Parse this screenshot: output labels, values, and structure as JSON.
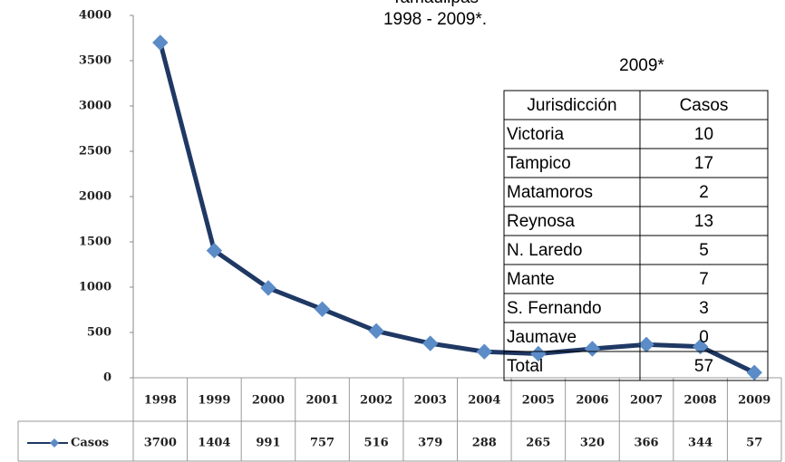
{
  "chart_data": {
    "type": "line",
    "title": [
      "Tamaulipas",
      "1998 - 2009*."
    ],
    "categories": [
      "1998",
      "1999",
      "2000",
      "2001",
      "2002",
      "2003",
      "2004",
      "2005",
      "2006",
      "2007",
      "2008",
      "2009"
    ],
    "series": [
      {
        "name": "Casos",
        "color": "#1f3864",
        "marker_color": "#5b8cc8",
        "values": [
          3700,
          1404,
          991,
          757,
          516,
          379,
          288,
          265,
          320,
          366,
          344,
          57
        ]
      }
    ],
    "ylim": [
      0,
      4000
    ],
    "yticks": [
      0,
      500,
      1000,
      1500,
      2000,
      2500,
      3000,
      3500,
      4000
    ]
  },
  "table": {
    "title": "2009*",
    "header": [
      "Jurisdicción",
      "Casos"
    ],
    "rows": [
      [
        "Victoria",
        10
      ],
      [
        "Tampico",
        17
      ],
      [
        "Matamoros",
        2
      ],
      [
        "Reynosa",
        13
      ],
      [
        "N. Laredo",
        5
      ],
      [
        "Mante",
        7
      ],
      [
        "S. Fernando",
        3
      ],
      [
        "Jaumave",
        0
      ],
      [
        "Total",
        57
      ]
    ]
  }
}
